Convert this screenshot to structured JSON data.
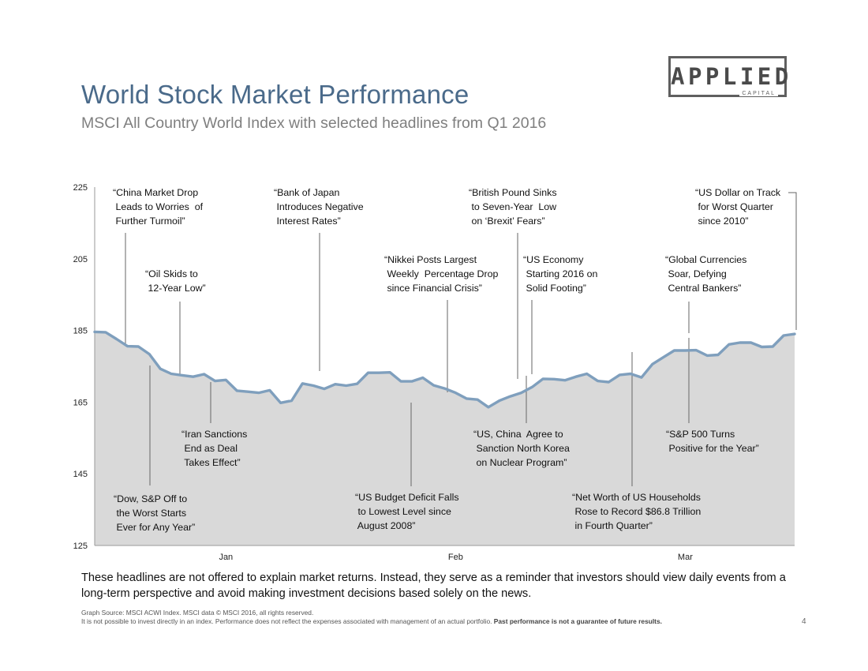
{
  "header": {
    "title": "World Stock Market Performance",
    "subtitle": "MSCI All Country World Index with selected headlines from Q1 2016",
    "logo_main": "APPLIED",
    "logo_sub": "CAPITAL"
  },
  "colors": {
    "title": "#4a6a8a",
    "line": "#7f9fbd",
    "area": "#d9d9d9",
    "axis": "#9a9a9a",
    "leader": "#666666"
  },
  "chart_data": {
    "type": "area",
    "ylim": [
      125,
      225
    ],
    "y_ticks": [
      "125",
      "145",
      "165",
      "185",
      "205",
      "225"
    ],
    "x_ticks": [
      {
        "label": "Jan",
        "x": 12
      },
      {
        "label": "Feb",
        "x": 33
      },
      {
        "label": "Mar",
        "x": 54
      }
    ],
    "xlim": [
      0,
      64
    ],
    "x": [
      0,
      1,
      2,
      3,
      4,
      5,
      6,
      7,
      8,
      9,
      10,
      11,
      12,
      13,
      14,
      15,
      16,
      17,
      18,
      19,
      20,
      21,
      22,
      23,
      24,
      25,
      26,
      27,
      28,
      29,
      30,
      31,
      32,
      33,
      34,
      35,
      36,
      37,
      38,
      39,
      40,
      41,
      42,
      43,
      44,
      45,
      46,
      47,
      48,
      49,
      50,
      51,
      52,
      53,
      54,
      55,
      56,
      57,
      58,
      59,
      60,
      61,
      62,
      63,
      64
    ],
    "values": [
      184.6,
      184.5,
      182.6,
      180.6,
      180.5,
      178.4,
      174.3,
      172.9,
      172.5,
      172.1,
      172.8,
      170.9,
      171.2,
      168.2,
      167.9,
      167.6,
      168.3,
      164.8,
      165.4,
      170.2,
      169.6,
      168.7,
      170.0,
      169.6,
      170.1,
      173.2,
      173.2,
      173.3,
      170.8,
      170.8,
      171.8,
      169.7,
      168.8,
      167.6,
      166.0,
      165.7,
      163.6,
      165.4,
      166.6,
      167.6,
      169.2,
      171.5,
      171.4,
      171.1,
      172.1,
      172.9,
      170.9,
      170.6,
      172.6,
      172.9,
      171.9,
      175.6,
      177.5,
      179.4,
      179.4,
      179.5,
      178.0,
      178.2,
      181.1,
      181.6,
      181.6,
      180.4,
      180.5,
      183.6,
      184.0
    ],
    "headlines": [
      {
        "lines": [
          "“China Market Drop",
          " Leads to Worries  of",
          " Further Turmoil”"
        ],
        "lx": 143,
        "ty": 244,
        "ax": 159,
        "ay": 295,
        "ex": 159,
        "ey": 436
      },
      {
        "lines": [
          "“Oil Skids to",
          " 12-Year Low”"
        ],
        "lx": 184,
        "ty": 347,
        "ax": 228,
        "ay": 382,
        "ex": 228,
        "ey": 474
      },
      {
        "lines": [
          "“Bank of Japan",
          " Introduces Negative",
          " Interest Rates”"
        ],
        "lx": 347,
        "ty": 244,
        "ax": 405,
        "ay": 295,
        "ex": 405,
        "ey": 470
      },
      {
        "lines": [
          "“Nikkei Posts Largest",
          " Weekly  Percentage Drop",
          " since Financial Crisis”"
        ],
        "lx": 487,
        "ty": 329,
        "ax": 567,
        "ay": 380,
        "ex": 567,
        "ey": 497
      },
      {
        "lines": [
          "“British Pound Sinks",
          " to Seven-Year  Low",
          " on ‘Brexit’ Fears”"
        ],
        "lx": 594,
        "ty": 244,
        "ax": 656,
        "ay": 295,
        "ex": 656,
        "ey": 480
      },
      {
        "lines": [
          "“US Economy",
          " Starting 2016 on",
          " Solid Footing”"
        ],
        "lx": 663,
        "ty": 329,
        "ax": 674,
        "ay": 380,
        "ex": 674,
        "ey": 474
      },
      {
        "lines": [
          "“US Dollar on Track",
          " for Worst Quarter",
          " since 2010”"
        ],
        "lx": 881,
        "ty": 244,
        "ax": 999,
        "ay": 244,
        "ex": 1009,
        "ey": 418,
        "elbow": true
      },
      {
        "lines": [
          "“Global Currencies",
          " Soar, Defying",
          " Central Bankers”"
        ],
        "lx": 843,
        "ty": 329,
        "ax": 873,
        "ay": 382,
        "ex": 873,
        "ey": 422
      },
      {
        "lines": [
          "“Dow, S&P Off to",
          " the Worst Starts",
          " Ever for Any Year”"
        ],
        "lx": 144,
        "ty": 632,
        "ax": 190,
        "ay": 615,
        "ex": 190,
        "ey": 463
      },
      {
        "lines": [
          "“Iran Sanctions",
          " End as Deal",
          " Takes Effect”"
        ],
        "lx": 230,
        "ty": 550,
        "ax": 267,
        "ay": 536,
        "ex": 267,
        "ey": 484
      },
      {
        "lines": [
          "“US Budget Deficit Falls",
          " to Lowest Level since",
          " August 2008”"
        ],
        "lx": 450,
        "ty": 630,
        "ax": 521,
        "ay": 616,
        "ex": 521,
        "ey": 510
      },
      {
        "lines": [
          "“US, China  Agree to",
          " Sanction North Korea",
          " on Nuclear Program”"
        ],
        "lx": 600,
        "ty": 550,
        "ax": 667,
        "ay": 536,
        "ex": 667,
        "ey": 476
      },
      {
        "lines": [
          "“Net Worth of US Households",
          " Rose to Record $86.8 Trillion",
          " in Fourth Quarter”"
        ],
        "lx": 725,
        "ty": 630,
        "ax": 801,
        "ay": 616,
        "ex": 801,
        "ey": 446
      },
      {
        "lines": [
          "“S&P 500 Turns",
          " Positive for the Year”"
        ],
        "lx": 844,
        "ty": 550,
        "ax": 873,
        "ay": 536,
        "ex": 873,
        "ey": 428
      }
    ]
  },
  "footer": {
    "disclaimer": "These headlines are not offered to explain market returns. Instead, they serve as a reminder that investors should view daily events from a long-term perspective and avoid making investment decisions based solely on the news.",
    "source_line": "Graph Source: MSCI ACWI Index. MSCI data © MSCI 2016, all rights reserved.",
    "note_line": "It is not possible to invest directly in an index. Performance does not reflect the expenses associated with management of an actual portfolio.",
    "note_bold": "Past performance is not a guarantee of future results.",
    "page_number": "4"
  }
}
